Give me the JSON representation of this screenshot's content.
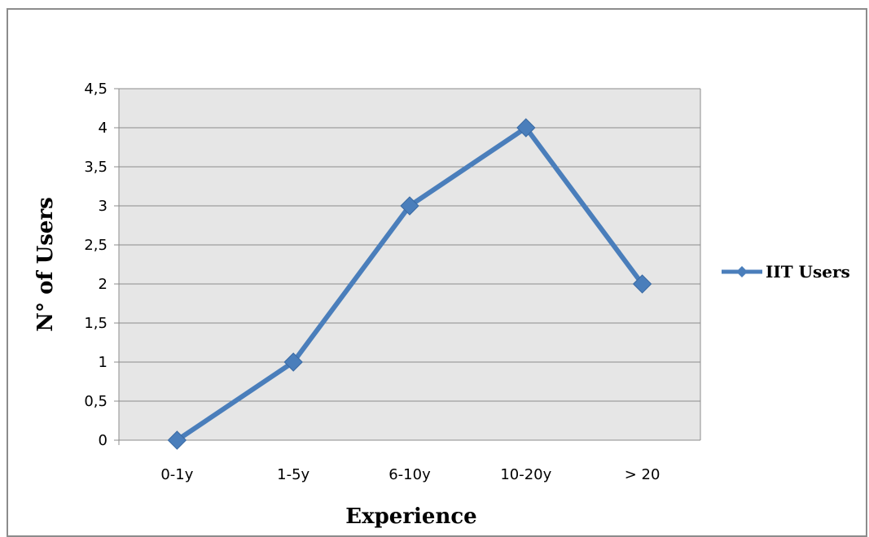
{
  "chart_data": {
    "type": "line",
    "categories": [
      "0-1y",
      "1-5y",
      "6-10y",
      "10-20y",
      "> 20"
    ],
    "series": [
      {
        "name": "IIT Users",
        "values": [
          0,
          1,
          3,
          4,
          2
        ],
        "color": "#4a7ebb"
      }
    ],
    "xlabel": "Experience",
    "ylabel": "N° of Users",
    "ylim": [
      0,
      4.5
    ],
    "yticks": [
      "0",
      "0,5",
      "1",
      "1,5",
      "2",
      "2,5",
      "3",
      "3,5",
      "4",
      "4,5"
    ],
    "grid": true,
    "legend_position": "right",
    "plot_background": "#e6e6e6",
    "gridline_color": "#8c8c8c"
  }
}
